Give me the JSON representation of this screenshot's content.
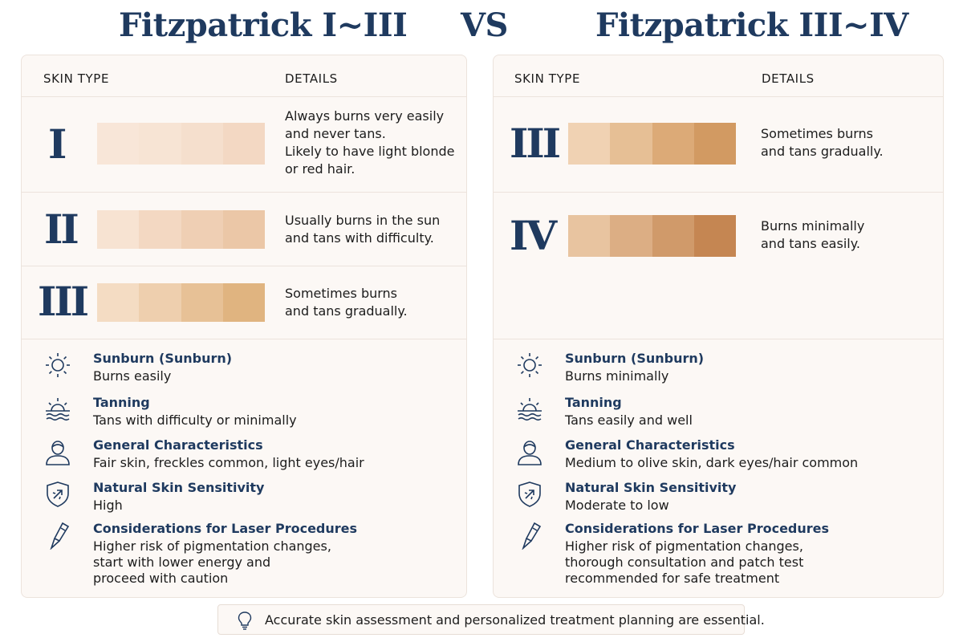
{
  "titles": {
    "left": "Fitzpatrick I~III",
    "vs": "VS",
    "right": "Fitzpatrick III~IV"
  },
  "panels": {
    "left": {
      "headers": {
        "skin_type": "SKIN TYPE",
        "details": "DETAILS"
      },
      "rows": [
        {
          "roman": "I",
          "swatches": [
            "#f8e6d8",
            "#f7e4d4",
            "#f5dfcd",
            "#f3d8c3"
          ],
          "lines": [
            "Always burns very easily",
            "and never tans.",
            "Likely to have light blonde",
            "or red hair."
          ]
        },
        {
          "roman": "II",
          "swatches": [
            "#f7e3d2",
            "#f3d8c2",
            "#efcfb4",
            "#ebc7a7"
          ],
          "lines": [
            "Usually burns in the sun",
            "and tans with difficulty."
          ]
        },
        {
          "roman": "III",
          "swatches": [
            "#f4dcc3",
            "#eecfae",
            "#e7c196",
            "#e0b480"
          ],
          "lines": [
            "Sometimes burns",
            "and tans gradually."
          ]
        }
      ],
      "attributes": [
        {
          "icon": "sun-icon",
          "title": "Sunburn (Sunburn)",
          "lines": [
            "Burns easily"
          ]
        },
        {
          "icon": "sunrise-icon",
          "title": "Tanning",
          "lines": [
            "Tans with difficulty or minimally"
          ]
        },
        {
          "icon": "person-icon",
          "title": "General Characteristics",
          "lines": [
            "Fair skin, freckles common, light eyes/hair"
          ]
        },
        {
          "icon": "shield-icon",
          "title": "Natural Skin Sensitivity",
          "lines": [
            "High"
          ]
        },
        {
          "icon": "laser-pen-icon",
          "title": "Considerations for Laser Procedures",
          "lines": [
            "Higher risk of pigmentation changes,",
            "start with lower energy and",
            "proceed with caution"
          ]
        }
      ]
    },
    "right": {
      "headers": {
        "skin_type": "SKIN TYPE",
        "details": "DETAILS"
      },
      "rows": [
        {
          "roman": "III",
          "swatches": [
            "#f0d2b3",
            "#e6bf95",
            "#dcaa77",
            "#d29a62"
          ],
          "lines": [
            "Sometimes burns",
            "and tans gradually."
          ]
        },
        {
          "roman": "IV",
          "swatches": [
            "#e8c4a0",
            "#dcae84",
            "#d09a6a",
            "#c58652"
          ],
          "lines": [
            "Burns minimally",
            "and tans easily."
          ]
        }
      ],
      "attributes": [
        {
          "icon": "sun-icon",
          "title": "Sunburn (Sunburn)",
          "lines": [
            "Burns minimally"
          ]
        },
        {
          "icon": "sunrise-icon",
          "title": "Tanning",
          "lines": [
            "Tans easily and well"
          ]
        },
        {
          "icon": "person-icon",
          "title": "General Characteristics",
          "lines": [
            "Medium to olive skin, dark eyes/hair common"
          ]
        },
        {
          "icon": "shield-icon",
          "title": "Natural Skin Sensitivity",
          "lines": [
            "Moderate to low"
          ]
        },
        {
          "icon": "laser-pen-icon",
          "title": "Considerations for Laser Procedures",
          "lines": [
            "Higher risk of pigmentation changes,",
            "thorough consultation and patch test",
            "recommended for safe treatment"
          ]
        }
      ]
    }
  },
  "footer": {
    "icon": "lightbulb-icon",
    "text": "Accurate skin assessment and personalized treatment planning are essential."
  }
}
